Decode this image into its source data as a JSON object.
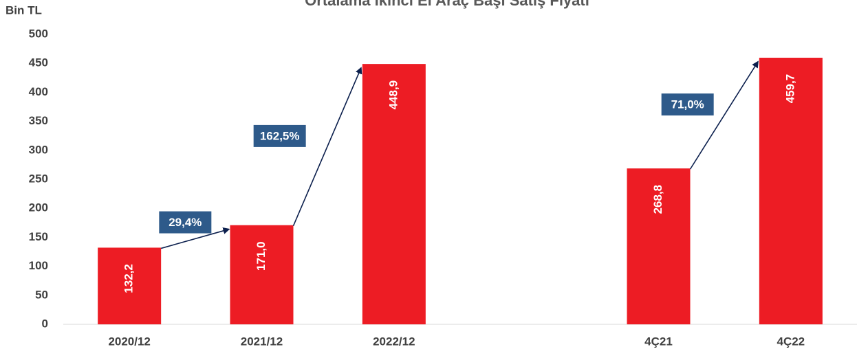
{
  "chart_data": {
    "type": "bar",
    "title": "Ortalama İkinci El Araç Başı Satış Fiyatı",
    "y_label": "Bin TL",
    "categories": [
      "2020/12",
      "2021/12",
      "2022/12",
      null,
      "4Ç21",
      "4Ç22"
    ],
    "values": [
      132.2,
      171.0,
      448.9,
      null,
      268.8,
      459.7
    ],
    "value_labels": [
      "132,2",
      "171,0",
      "448,9",
      null,
      "268,8",
      "459,7"
    ],
    "color": "#ed1c24",
    "ylim": [
      0,
      500
    ],
    "yticks": [
      0,
      50,
      100,
      150,
      200,
      250,
      300,
      350,
      400,
      450,
      500
    ],
    "annotations": [
      "29,4%",
      "162,5%",
      "71,0%"
    ],
    "annotation_color": "#2e5a8a",
    "grid": false
  }
}
